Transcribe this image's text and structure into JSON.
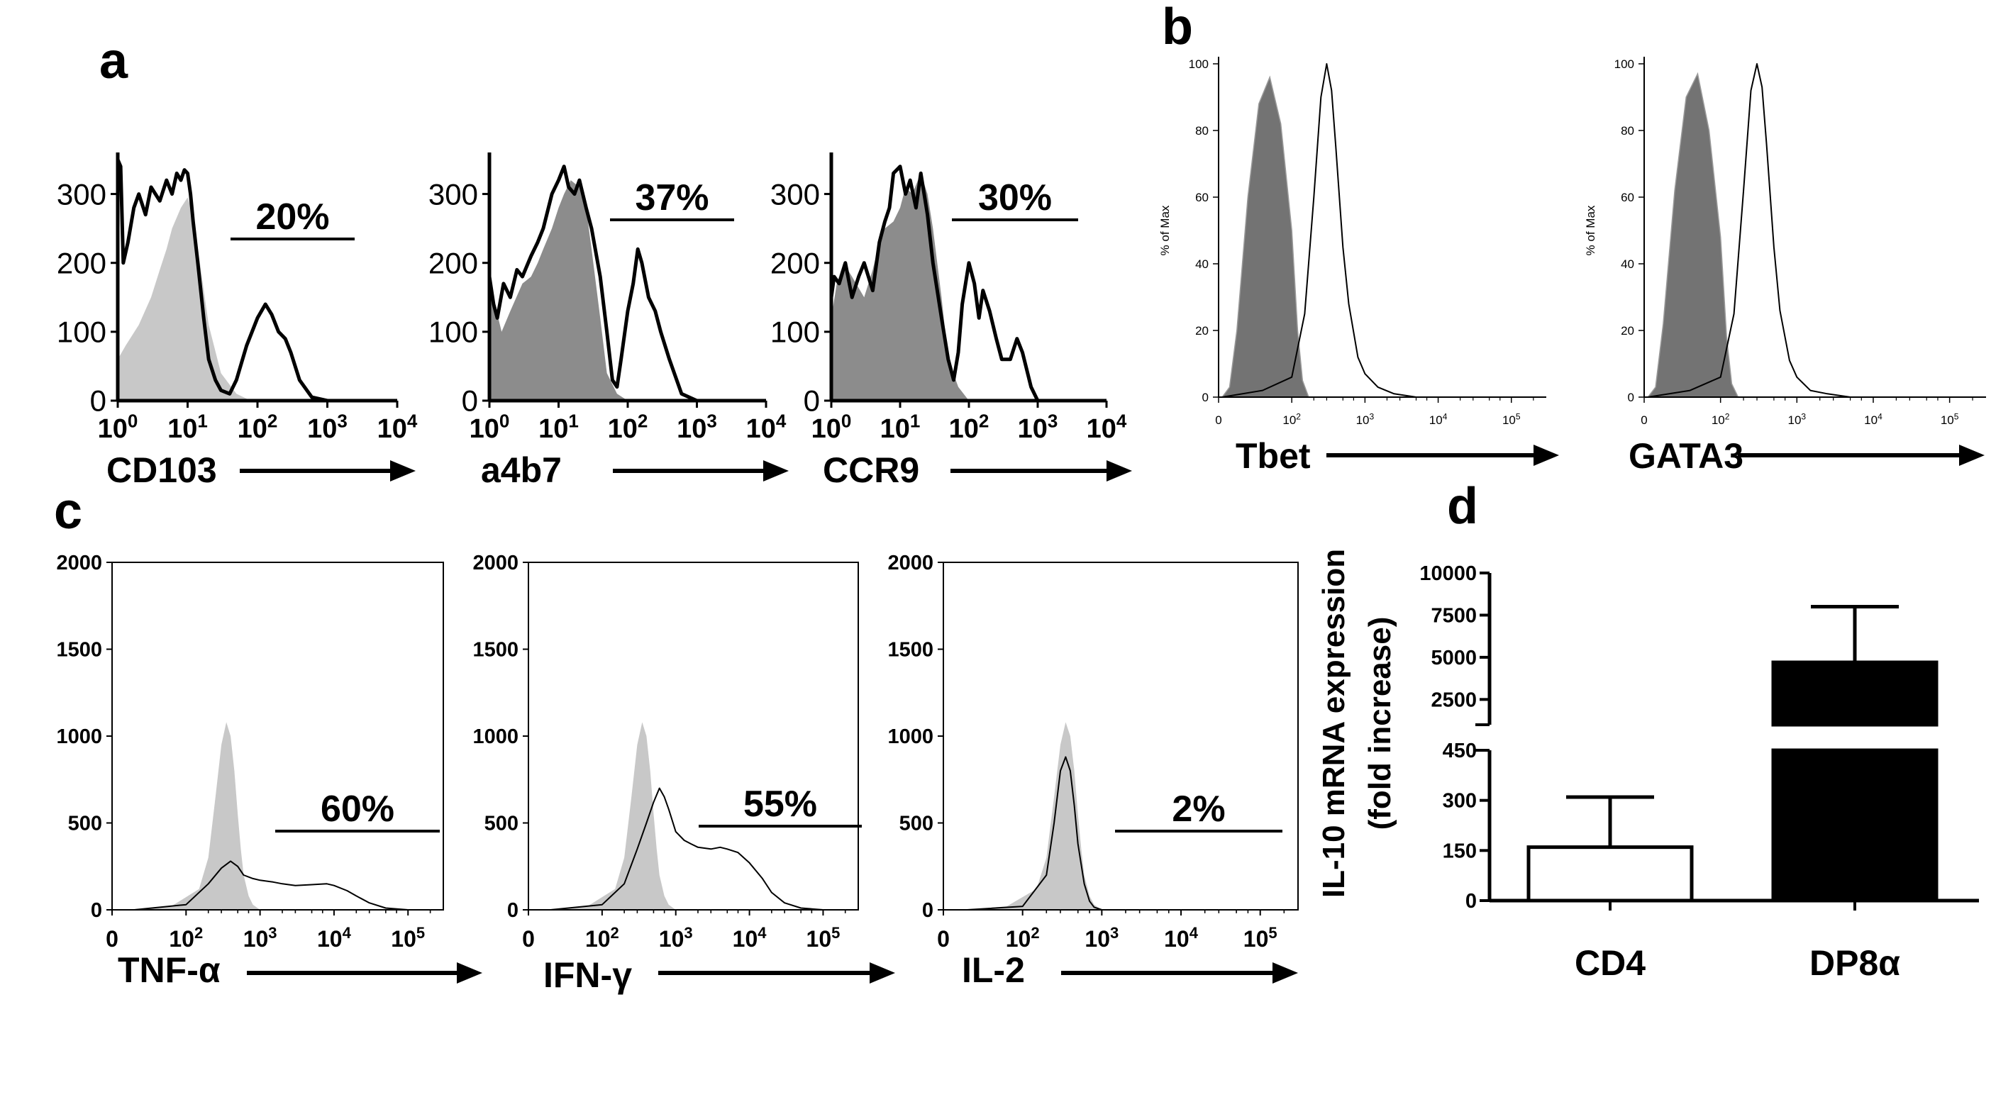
{
  "panel_labels": [
    "a",
    "b",
    "c",
    "d"
  ],
  "chart_data": [
    {
      "panel": "a",
      "type": "area",
      "xlabel": "CD103",
      "x_scale": "log",
      "xlim": [
        1,
        10000
      ],
      "ylim": [
        0,
        350
      ],
      "yticks": [
        "0",
        "100",
        "200",
        "300"
      ],
      "xticks": [
        [
          "10",
          "0"
        ],
        [
          "10",
          "1"
        ],
        [
          "10",
          "2"
        ],
        [
          "10",
          "3"
        ],
        [
          "10",
          "4"
        ]
      ],
      "gate_label": "20%",
      "series": [
        {
          "role": "control",
          "fill": "#c8c8c8",
          "x": [
            1,
            1.3,
            2,
            3,
            4,
            5,
            6,
            8,
            10,
            12,
            15,
            20,
            30,
            50,
            80
          ],
          "y": [
            60,
            80,
            110,
            150,
            190,
            220,
            250,
            280,
            295,
            270,
            200,
            110,
            40,
            10,
            0
          ]
        },
        {
          "role": "sample",
          "stroke": "#000000",
          "x": [
            1,
            1.1,
            1.2,
            1.4,
            1.7,
            2,
            2.5,
            3,
            4,
            5,
            6,
            7,
            8,
            9,
            10,
            11,
            12,
            14,
            17,
            20,
            25,
            30,
            40,
            50,
            70,
            100,
            130,
            160,
            200,
            250,
            300,
            400,
            600,
            1000,
            10000
          ],
          "y": [
            350,
            340,
            200,
            230,
            280,
            300,
            270,
            310,
            290,
            320,
            300,
            330,
            320,
            335,
            330,
            300,
            260,
            200,
            120,
            60,
            30,
            15,
            10,
            30,
            80,
            120,
            140,
            125,
            100,
            90,
            70,
            30,
            5,
            0,
            0
          ]
        }
      ]
    },
    {
      "panel": "a",
      "type": "area",
      "xlabel": "a4b7",
      "x_scale": "log",
      "xlim": [
        1,
        10000
      ],
      "ylim": [
        0,
        350
      ],
      "yticks": [
        "0",
        "100",
        "200",
        "300"
      ],
      "xticks": [
        [
          "10",
          "0"
        ],
        [
          "10",
          "1"
        ],
        [
          "10",
          "2"
        ],
        [
          "10",
          "3"
        ],
        [
          "10",
          "4"
        ]
      ],
      "gate_label": "37%",
      "series": [
        {
          "role": "control",
          "fill": "#8c8c8c",
          "x": [
            1,
            1.2,
            1.5,
            2,
            3,
            4,
            5,
            6,
            8,
            10,
            12,
            15,
            20,
            25,
            30,
            40,
            50,
            70,
            100
          ],
          "y": [
            150,
            140,
            100,
            130,
            170,
            180,
            200,
            220,
            250,
            280,
            300,
            320,
            310,
            280,
            220,
            120,
            40,
            10,
            0
          ]
        },
        {
          "role": "sample",
          "stroke": "#000000",
          "x": [
            1,
            1.15,
            1.3,
            1.6,
            2,
            2.5,
            3,
            4,
            5,
            6,
            8,
            10,
            12,
            14,
            17,
            20,
            25,
            30,
            40,
            50,
            60,
            70,
            80,
            100,
            120,
            140,
            160,
            200,
            250,
            300,
            400,
            600,
            1000,
            10000
          ],
          "y": [
            180,
            140,
            120,
            170,
            150,
            190,
            180,
            210,
            230,
            250,
            300,
            320,
            340,
            310,
            300,
            320,
            280,
            250,
            180,
            100,
            30,
            20,
            60,
            130,
            170,
            220,
            200,
            150,
            130,
            100,
            60,
            10,
            0,
            0
          ]
        }
      ]
    },
    {
      "panel": "a",
      "type": "area",
      "xlabel": "CCR9",
      "x_scale": "log",
      "xlim": [
        1,
        10000
      ],
      "ylim": [
        0,
        350
      ],
      "yticks": [
        "0",
        "100",
        "200",
        "300"
      ],
      "xticks": [
        [
          "10",
          "0"
        ],
        [
          "10",
          "1"
        ],
        [
          "10",
          "2"
        ],
        [
          "10",
          "3"
        ],
        [
          "10",
          "4"
        ]
      ],
      "gate_label": "30%",
      "series": [
        {
          "role": "control",
          "fill": "#8c8c8c",
          "x": [
            1,
            1.2,
            1.5,
            2,
            3,
            4,
            5,
            6,
            8,
            10,
            12,
            15,
            20,
            25,
            30,
            40,
            50,
            70,
            100
          ],
          "y": [
            120,
            170,
            200,
            180,
            150,
            190,
            230,
            250,
            260,
            280,
            310,
            300,
            330,
            300,
            250,
            150,
            60,
            20,
            0
          ]
        },
        {
          "role": "sample",
          "stroke": "#000000",
          "x": [
            1,
            1.1,
            1.3,
            1.6,
            2,
            2.5,
            3,
            4,
            5,
            6,
            7,
            8,
            10,
            12,
            14,
            17,
            20,
            25,
            30,
            40,
            50,
            60,
            70,
            80,
            100,
            120,
            140,
            160,
            200,
            250,
            300,
            400,
            500,
            600,
            800,
            1000,
            10000
          ],
          "y": [
            150,
            180,
            170,
            200,
            150,
            180,
            200,
            160,
            230,
            260,
            280,
            330,
            340,
            300,
            320,
            280,
            330,
            270,
            200,
            120,
            60,
            30,
            70,
            140,
            200,
            170,
            120,
            160,
            130,
            90,
            60,
            60,
            90,
            70,
            20,
            0,
            0
          ]
        }
      ]
    },
    {
      "panel": "b",
      "type": "area",
      "xlabel": "Tbet",
      "ylabel": "% of Max",
      "x_scale": "biexponential",
      "ylim": [
        0,
        100
      ],
      "yticks": [
        "0",
        "20",
        "40",
        "60",
        "80",
        "100"
      ],
      "xticks": [
        [
          "0",
          ""
        ],
        [
          "10",
          "2"
        ],
        [
          "10",
          "3"
        ],
        [
          "10",
          "4"
        ],
        [
          "10",
          "5"
        ]
      ],
      "series": [
        {
          "role": "control",
          "fill": "#737373",
          "x": [
            5,
            15,
            25,
            40,
            55,
            70,
            85,
            100,
            120,
            140,
            170
          ],
          "y": [
            0,
            3,
            20,
            60,
            88,
            96,
            82,
            50,
            20,
            5,
            0
          ]
        },
        {
          "role": "sample",
          "stroke": "#000000",
          "x": [
            5,
            60,
            100,
            150,
            200,
            250,
            300,
            350,
            400,
            500,
            600,
            800,
            1000,
            1500,
            2500,
            5000,
            100000
          ],
          "y": [
            0,
            2,
            6,
            25,
            60,
            90,
            100,
            92,
            75,
            45,
            28,
            12,
            7,
            3,
            1,
            0,
            0
          ]
        }
      ]
    },
    {
      "panel": "b",
      "type": "area",
      "xlabel": "GATA3",
      "ylabel": "% of Max",
      "x_scale": "biexponential",
      "ylim": [
        0,
        100
      ],
      "yticks": [
        "0",
        "20",
        "40",
        "60",
        "80",
        "100"
      ],
      "xticks": [
        [
          "0",
          ""
        ],
        [
          "10",
          "2"
        ],
        [
          "10",
          "3"
        ],
        [
          "10",
          "4"
        ],
        [
          "10",
          "5"
        ]
      ],
      "series": [
        {
          "role": "control",
          "fill": "#737373",
          "x": [
            5,
            15,
            25,
            40,
            55,
            70,
            85,
            100,
            120,
            140,
            170
          ],
          "y": [
            0,
            3,
            22,
            62,
            90,
            97,
            80,
            48,
            18,
            4,
            0
          ]
        },
        {
          "role": "sample",
          "stroke": "#000000",
          "x": [
            5,
            60,
            100,
            150,
            200,
            250,
            300,
            350,
            400,
            500,
            600,
            800,
            1000,
            1500,
            2500,
            5000,
            100000
          ],
          "y": [
            0,
            2,
            6,
            25,
            62,
            92,
            100,
            93,
            76,
            45,
            26,
            11,
            6,
            2,
            1,
            0,
            0
          ]
        }
      ]
    },
    {
      "panel": "c",
      "type": "area",
      "xlabel": "TNF-α",
      "x_scale": "biexponential",
      "ylim": [
        0,
        2000
      ],
      "yticks": [
        "0",
        "500",
        "1000",
        "1500",
        "2000"
      ],
      "xticks": [
        [
          "0",
          ""
        ],
        [
          "10",
          "2"
        ],
        [
          "10",
          "3"
        ],
        [
          "10",
          "4"
        ],
        [
          "10",
          "5"
        ]
      ],
      "gate_label": "60%",
      "series": [
        {
          "role": "control",
          "fill": "#c8c8c8",
          "x": [
            30,
            80,
            150,
            200,
            250,
            300,
            350,
            400,
            450,
            500,
            550,
            600,
            700,
            800,
            1000
          ],
          "y": [
            0,
            20,
            120,
            300,
            650,
            950,
            1080,
            1000,
            800,
            550,
            350,
            200,
            80,
            30,
            0
          ]
        },
        {
          "role": "sample",
          "stroke": "#000000",
          "x": [
            30,
            100,
            200,
            300,
            400,
            500,
            600,
            800,
            1000,
            1500,
            2000,
            3000,
            5000,
            8000,
            10000,
            15000,
            20000,
            30000,
            50000,
            100000
          ],
          "y": [
            0,
            30,
            150,
            240,
            280,
            250,
            200,
            180,
            170,
            160,
            150,
            140,
            145,
            150,
            140,
            110,
            80,
            40,
            10,
            0
          ]
        }
      ]
    },
    {
      "panel": "c",
      "type": "area",
      "xlabel": "IFN-γ",
      "x_scale": "biexponential",
      "ylim": [
        0,
        2000
      ],
      "yticks": [
        "0",
        "500",
        "1000",
        "1500",
        "2000"
      ],
      "xticks": [
        [
          "0",
          ""
        ],
        [
          "10",
          "2"
        ],
        [
          "10",
          "3"
        ],
        [
          "10",
          "4"
        ],
        [
          "10",
          "5"
        ]
      ],
      "gate_label": "55%",
      "series": [
        {
          "role": "control",
          "fill": "#c8c8c8",
          "x": [
            30,
            80,
            150,
            200,
            250,
            300,
            350,
            400,
            450,
            500,
            550,
            600,
            700,
            800,
            1000
          ],
          "y": [
            0,
            20,
            120,
            300,
            650,
            950,
            1080,
            1000,
            800,
            550,
            350,
            200,
            80,
            30,
            0
          ]
        },
        {
          "role": "sample",
          "stroke": "#000000",
          "x": [
            30,
            100,
            200,
            300,
            400,
            500,
            600,
            700,
            800,
            1000,
            1300,
            1600,
            2000,
            3000,
            4000,
            5000,
            7000,
            10000,
            15000,
            20000,
            30000,
            50000,
            100000
          ],
          "y": [
            0,
            30,
            150,
            350,
            500,
            620,
            700,
            650,
            580,
            450,
            400,
            380,
            360,
            350,
            360,
            350,
            330,
            270,
            180,
            100,
            40,
            10,
            0
          ]
        }
      ]
    },
    {
      "panel": "c",
      "type": "area",
      "xlabel": "IL-2",
      "x_scale": "biexponential",
      "ylim": [
        0,
        2000
      ],
      "yticks": [
        "0",
        "500",
        "1000",
        "1500",
        "2000"
      ],
      "xticks": [
        [
          "0",
          ""
        ],
        [
          "10",
          "2"
        ],
        [
          "10",
          "3"
        ],
        [
          "10",
          "4"
        ],
        [
          "10",
          "5"
        ]
      ],
      "gate_label": "2%",
      "series": [
        {
          "role": "control",
          "fill": "#c8c8c8",
          "x": [
            30,
            80,
            150,
            200,
            250,
            300,
            350,
            400,
            450,
            500,
            550,
            600,
            700,
            800,
            1000
          ],
          "y": [
            0,
            20,
            120,
            300,
            650,
            950,
            1080,
            1000,
            800,
            550,
            350,
            200,
            80,
            30,
            0
          ]
        },
        {
          "role": "sample",
          "stroke": "#000000",
          "x": [
            30,
            100,
            200,
            250,
            300,
            350,
            400,
            450,
            500,
            600,
            700,
            800,
            1000,
            100000
          ],
          "y": [
            0,
            20,
            200,
            500,
            800,
            880,
            800,
            600,
            380,
            150,
            50,
            15,
            0,
            0
          ]
        }
      ]
    },
    {
      "panel": "d",
      "type": "bar",
      "categories": [
        "CD4",
        "DP8α"
      ],
      "values": [
        160,
        4700
      ],
      "errors": [
        150,
        3300
      ],
      "fills": [
        "#ffffff",
        "#000000"
      ],
      "ylabel": [
        "IL-10 mRNA expression",
        "(fold increase)"
      ],
      "axis_break": [
        450,
        1000
      ],
      "yticks_lower": [
        "0",
        "150",
        "300",
        "450"
      ],
      "yticks_upper": [
        "2500",
        "5000",
        "7500",
        "10000"
      ]
    }
  ]
}
